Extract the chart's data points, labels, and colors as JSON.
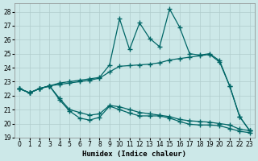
{
  "xlabel": "Humidex (Indice chaleur)",
  "bg_color": "#cce8e8",
  "grid_color": "#b0cccc",
  "line_color": "#006666",
  "xlim": [
    -0.5,
    23.5
  ],
  "ylim": [
    19,
    28.6
  ],
  "yticks": [
    19,
    20,
    21,
    22,
    23,
    24,
    25,
    26,
    27,
    28
  ],
  "xticks": [
    0,
    1,
    2,
    3,
    4,
    5,
    6,
    7,
    8,
    9,
    10,
    11,
    12,
    13,
    14,
    15,
    16,
    17,
    18,
    19,
    20,
    21,
    22,
    23
  ],
  "series": [
    {
      "x": [
        0,
        1,
        2,
        3,
        4,
        5,
        6,
        7,
        8,
        9,
        10,
        11,
        12,
        13,
        14,
        15,
        16,
        17,
        18,
        19,
        20,
        21,
        22,
        23
      ],
      "y": [
        22.5,
        22.2,
        22.5,
        22.7,
        22.9,
        23.0,
        23.1,
        23.2,
        23.3,
        24.2,
        27.5,
        25.3,
        27.2,
        26.1,
        25.5,
        28.2,
        26.9,
        25.0,
        24.9,
        25.0,
        24.5,
        22.7,
        20.5,
        19.5
      ]
    },
    {
      "x": [
        0,
        1,
        2,
        3,
        4,
        5,
        6,
        7,
        8,
        9,
        10,
        11,
        12,
        13,
        14,
        15,
        16,
        17,
        18,
        19,
        20,
        21,
        22,
        23
      ],
      "y": [
        22.5,
        22.2,
        22.5,
        22.7,
        22.8,
        22.9,
        23.0,
        23.1,
        23.25,
        23.7,
        24.1,
        24.15,
        24.2,
        24.25,
        24.35,
        24.55,
        24.65,
        24.75,
        24.85,
        24.95,
        24.4,
        22.7,
        20.5,
        19.5
      ]
    },
    {
      "x": [
        0,
        1,
        2,
        3,
        4,
        5,
        6,
        7,
        8,
        9,
        10,
        11,
        12,
        13,
        14,
        15,
        16,
        17,
        18,
        19,
        20,
        21,
        22,
        23
      ],
      "y": [
        22.5,
        22.2,
        22.5,
        22.7,
        21.8,
        21.0,
        20.8,
        20.6,
        20.7,
        21.3,
        21.2,
        21.0,
        20.8,
        20.7,
        20.6,
        20.5,
        20.3,
        20.2,
        20.15,
        20.1,
        20.0,
        19.9,
        19.6,
        19.5
      ]
    },
    {
      "x": [
        0,
        1,
        2,
        3,
        4,
        5,
        6,
        7,
        8,
        9,
        10,
        11,
        12,
        13,
        14,
        15,
        16,
        17,
        18,
        19,
        20,
        21,
        22,
        23
      ],
      "y": [
        22.5,
        22.2,
        22.5,
        22.7,
        21.7,
        20.9,
        20.4,
        20.25,
        20.45,
        21.25,
        21.0,
        20.75,
        20.55,
        20.55,
        20.55,
        20.4,
        20.15,
        19.95,
        19.9,
        19.9,
        19.85,
        19.65,
        19.45,
        19.35
      ]
    }
  ]
}
